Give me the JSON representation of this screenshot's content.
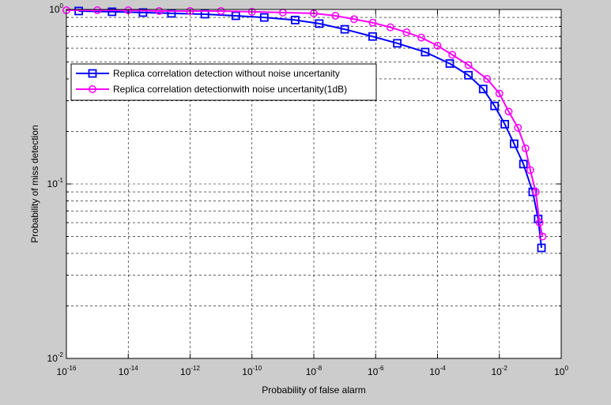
{
  "colors": {
    "figure_bg": "#cccccc",
    "axes_bg": "#ffffff",
    "grid": "#000000",
    "series_blue": "#0000ff",
    "series_magenta": "#ff00ff"
  },
  "chart_data": {
    "type": "line",
    "title": "",
    "xlabel": "Probability of false alarm",
    "ylabel": "Probability of miss detection",
    "xscale": "log",
    "yscale": "log",
    "xlim": [
      1e-16,
      1
    ],
    "ylim": [
      0.01,
      1
    ],
    "grid": true,
    "legend_position": "upper-left",
    "x_ticks": [
      {
        "base": "10",
        "exp": "-16"
      },
      {
        "base": "10",
        "exp": "-14"
      },
      {
        "base": "10",
        "exp": "-12"
      },
      {
        "base": "10",
        "exp": "-10"
      },
      {
        "base": "10",
        "exp": "-8"
      },
      {
        "base": "10",
        "exp": "-6"
      },
      {
        "base": "10",
        "exp": "-4"
      },
      {
        "base": "10",
        "exp": "-2"
      },
      {
        "base": "10",
        "exp": "0"
      }
    ],
    "y_ticks": [
      {
        "base": "10",
        "exp": "-2"
      },
      {
        "base": "10",
        "exp": "-1"
      },
      {
        "base": "10",
        "exp": "0"
      }
    ],
    "series": [
      {
        "name": "Replica correlation detection without noise uncertanity",
        "color": "#0000ff",
        "marker": "square",
        "x": [
          2.5e-16,
          3e-15,
          3e-14,
          2.5e-13,
          3e-12,
          3e-11,
          2.5e-10,
          2.5e-09,
          1.5e-08,
          1e-07,
          8e-07,
          5e-06,
          4e-05,
          0.00025,
          0.001,
          0.003,
          0.007,
          0.015,
          0.03,
          0.06,
          0.12,
          0.18,
          0.23
        ],
        "y": [
          0.98,
          0.97,
          0.96,
          0.95,
          0.94,
          0.92,
          0.9,
          0.87,
          0.83,
          0.77,
          0.7,
          0.64,
          0.57,
          0.49,
          0.42,
          0.35,
          0.28,
          0.22,
          0.17,
          0.13,
          0.09,
          0.063,
          0.043
        ]
      },
      {
        "name": "Replica correlation detectionwith noise uncertanity(1dB)",
        "color": "#ff00ff",
        "marker": "circle",
        "x": [
          1e-16,
          1e-15,
          1e-14,
          1e-13,
          1e-12,
          1e-11,
          1e-10,
          1e-09,
          1e-08,
          5e-08,
          2e-07,
          8e-07,
          3e-06,
          1e-05,
          3e-05,
          0.0001,
          0.0003,
          0.001,
          0.004,
          0.01,
          0.02,
          0.04,
          0.07,
          0.1,
          0.15,
          0.2,
          0.25
        ],
        "y": [
          0.99,
          0.99,
          0.99,
          0.98,
          0.98,
          0.98,
          0.97,
          0.96,
          0.95,
          0.92,
          0.88,
          0.84,
          0.79,
          0.74,
          0.69,
          0.62,
          0.55,
          0.48,
          0.4,
          0.33,
          0.26,
          0.21,
          0.16,
          0.12,
          0.09,
          0.06,
          0.05
        ]
      }
    ]
  }
}
